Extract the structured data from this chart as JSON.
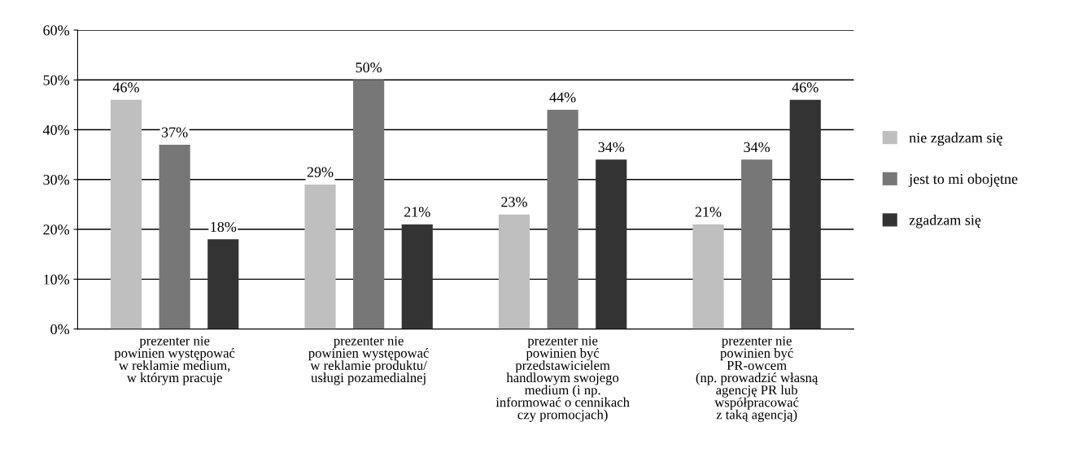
{
  "chart_data": {
    "type": "bar",
    "categories": [
      "prezenter nie\npowinien występować\nw reklamie medium,\nw którym pracuje",
      "prezenter nie\npowinien występować\nw reklamie produktu/\nusługi pozamedialnej",
      "prezenter nie\npowinien być\nprzedstawicielem\nhandlowym swojego\nmedium (i np.\ninformować o cennikach\nczy promocjach)",
      "prezenter nie\npowinien być\nPR-owcem\n(np. prowadzić własną\nagencję PR lub\nwspółpracować\nz taką agencją)"
    ],
    "series": [
      {
        "name": "nie zgadzam się",
        "color": "#bfbfbf",
        "values": [
          46,
          29,
          23,
          21
        ],
        "value_labels": [
          "46%",
          "29%",
          "23%",
          "21%"
        ]
      },
      {
        "name": "jest to mi obojętne",
        "color": "#777777",
        "values": [
          37,
          50,
          44,
          34
        ],
        "value_labels": [
          "37%",
          "50%",
          "44%",
          "34%"
        ]
      },
      {
        "name": "zgadzam się",
        "color": "#333333",
        "values": [
          18,
          21,
          34,
          46
        ],
        "value_labels": [
          "18%",
          "21%",
          "34%",
          "46%"
        ]
      }
    ],
    "ylim": [
      0,
      60
    ],
    "yticks": [
      {
        "value": 0,
        "label": "0%"
      },
      {
        "value": 10,
        "label": "10%"
      },
      {
        "value": 20,
        "label": "20%"
      },
      {
        "value": 30,
        "label": "30%"
      },
      {
        "value": 40,
        "label": "40%"
      },
      {
        "value": 50,
        "label": "50%"
      },
      {
        "value": 60,
        "label": "60%"
      }
    ],
    "grid": "y",
    "legend": "right"
  }
}
